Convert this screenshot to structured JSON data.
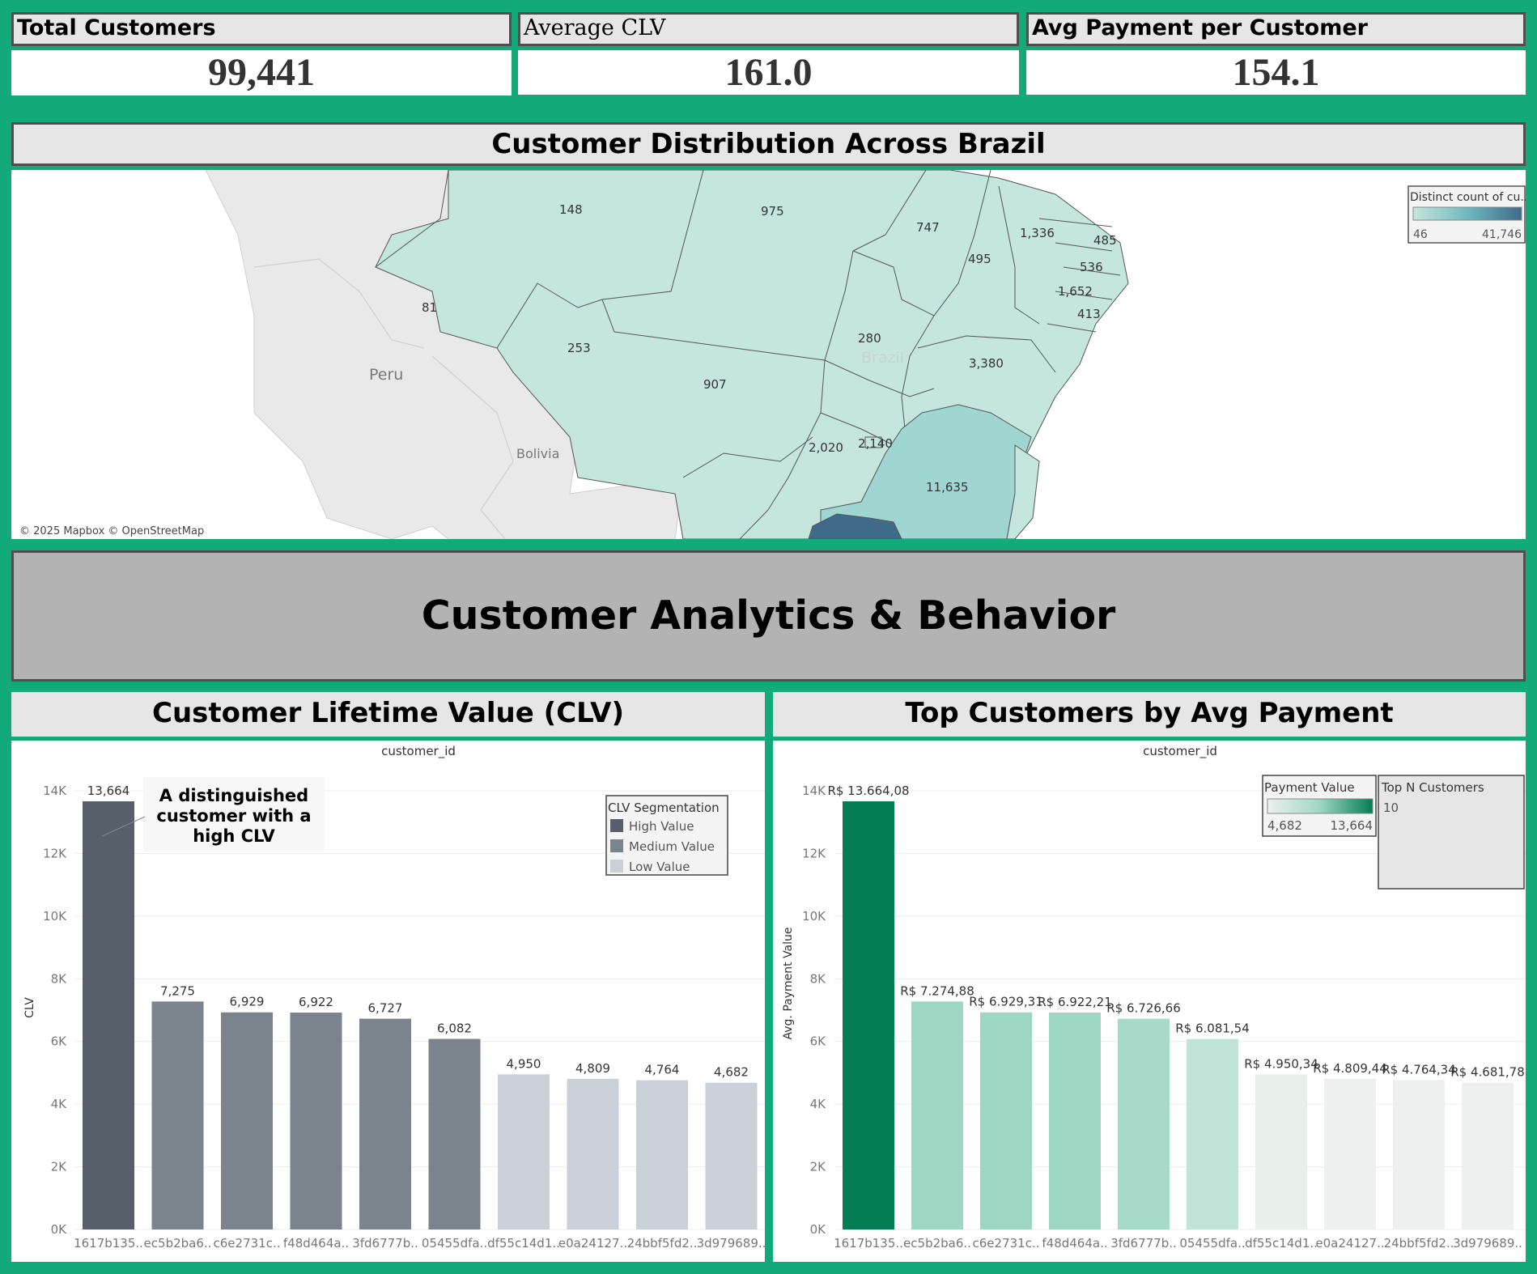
{
  "kpis": [
    {
      "title": "Total Customers",
      "value": "99,441"
    },
    {
      "title": "Average CLV",
      "value": "161.0"
    },
    {
      "title": "Avg Payment per Customer",
      "value": "154.1"
    }
  ],
  "map": {
    "title": "Customer Distribution Across Brazil",
    "legend_title": "Distinct count of cu..",
    "legend_min": "46",
    "legend_max": "41,746",
    "attribution": "© 2025 Mapbox © OpenStreetMap",
    "country_labels": [
      "Peru",
      "Bolivia",
      "Brazil"
    ],
    "state_values": [
      "148",
      "975",
      "747",
      "1,336",
      "485",
      "495",
      "536",
      "1,652",
      "413",
      "81",
      "253",
      "280",
      "907",
      "3,380",
      "2,020",
      "2,140",
      "11,635"
    ],
    "colors": {
      "light": "#c5e6dc",
      "mid": "#a0d6d2",
      "dark": "#3f6a8a",
      "land": "#e8e8e8"
    }
  },
  "banner": {
    "title": "Customer Analytics & Behavior"
  },
  "clv": {
    "title": "Customer Lifetime Value (CLV)",
    "axis_top_label": "customer_id",
    "annotation": [
      "A distinguished",
      "customer with a",
      "high CLV"
    ],
    "legend_title": "CLV Segmentation",
    "legend_items": [
      {
        "label": "High Value",
        "color": "#575f6b"
      },
      {
        "label": "Medium Value",
        "color": "#7b838d"
      },
      {
        "label": "Low Value",
        "color": "#c9d0d8"
      }
    ]
  },
  "top": {
    "title": "Top Customers by Avg Payment",
    "axis_top_label": "customer_id",
    "legend_title": "Payment Value",
    "legend_min": "4,682",
    "legend_max": "13,664",
    "topn_title": "Top N Customers",
    "topn_value": "10"
  },
  "chart_data": [
    {
      "type": "bar",
      "title": "Customer Lifetime Value (CLV)",
      "xlabel": "customer_id",
      "ylabel": "CLV",
      "ylim": [
        0,
        14000
      ],
      "yticks": [
        "0K",
        "2K",
        "4K",
        "6K",
        "8K",
        "10K",
        "12K",
        "14K"
      ],
      "categories": [
        "1617b135..",
        "ec5b2ba6..",
        "c6e2731c..",
        "f48d464a..",
        "3fd6777b..",
        "05455dfa..",
        "df55c14d1..",
        "e0a24127..",
        "24bbf5fd2..",
        "3d979689.."
      ],
      "values": [
        13664,
        7275,
        6929,
        6922,
        6727,
        6082,
        4950,
        4809,
        4764,
        4682
      ],
      "labels": [
        "13,664",
        "7,275",
        "6,929",
        "6,922",
        "6,727",
        "6,082",
        "4,950",
        "4,809",
        "4,764",
        "4,682"
      ],
      "segments": [
        "High Value",
        "Medium Value",
        "Medium Value",
        "Medium Value",
        "Medium Value",
        "Medium Value",
        "Low Value",
        "Low Value",
        "Low Value",
        "Low Value"
      ],
      "grid": true
    },
    {
      "type": "bar",
      "title": "Top Customers by Avg Payment",
      "xlabel": "customer_id",
      "ylabel": "Avg. Payment Value",
      "ylim": [
        0,
        14000
      ],
      "yticks": [
        "0K",
        "2K",
        "4K",
        "6K",
        "8K",
        "10K",
        "12K",
        "14K"
      ],
      "categories": [
        "1617b135..",
        "ec5b2ba6..",
        "c6e2731c..",
        "f48d464a..",
        "3fd6777b..",
        "05455dfa..",
        "df55c14d1..",
        "e0a24127..",
        "24bbf5fd2..",
        "3d979689.."
      ],
      "values": [
        13664.08,
        7274.88,
        6929.31,
        6922.21,
        6726.66,
        6081.54,
        4950.34,
        4809.44,
        4764.34,
        4681.78
      ],
      "labels": [
        "R$ 13.664,08",
        "R$ 7.274,88",
        "R$ 6.929,31",
        "R$ 6.922,21",
        "R$ 6.726,66",
        "R$ 6.081,54",
        "R$ 4.950,34",
        "R$ 4.809,44",
        "R$ 4.764,34",
        "R$ 4.681,78"
      ],
      "colors": [
        "#047c54",
        "#9ed6c4",
        "#9ed6c4",
        "#9ed6c4",
        "#a5d9c8",
        "#c0e4d8",
        "#e8f0ec",
        "#eef0ef",
        "#eef0ef",
        "#eef0ef"
      ],
      "grid": true
    }
  ]
}
